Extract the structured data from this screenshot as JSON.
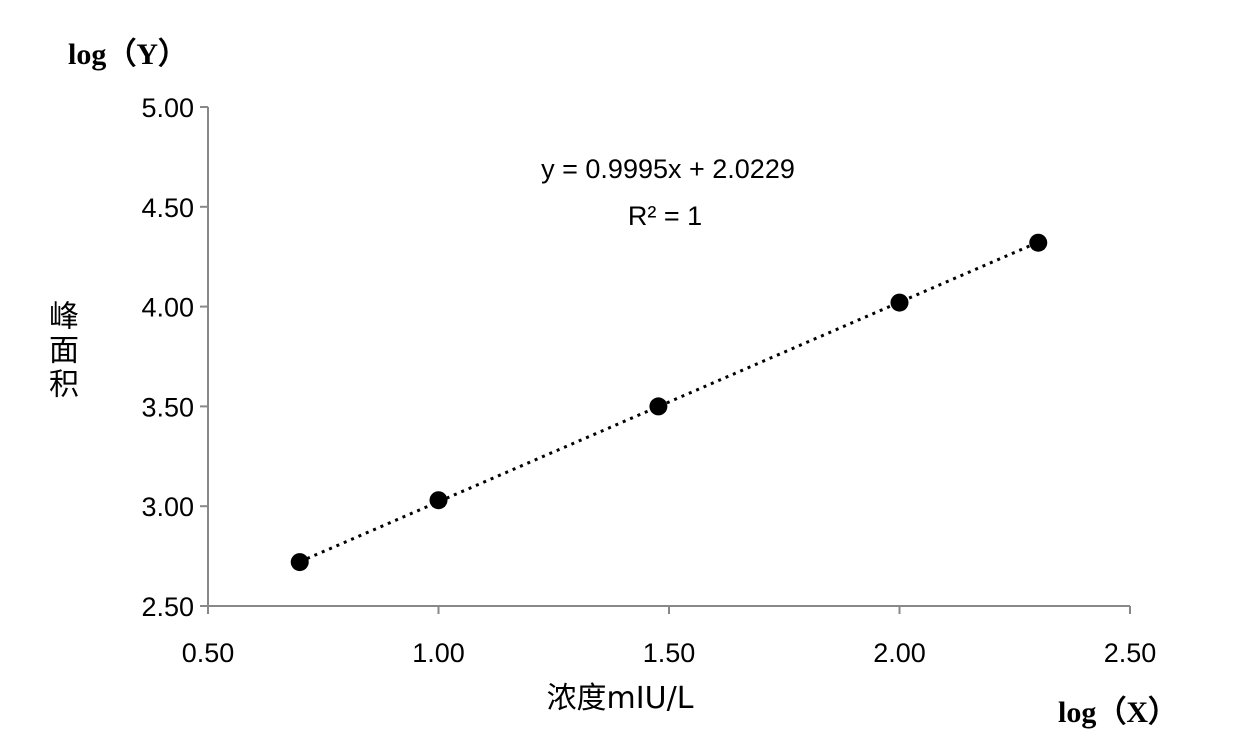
{
  "chart_data": {
    "type": "scatter",
    "title": "",
    "xlabel": "浓度mIU/L",
    "ylabel": "峰面积",
    "x_axis_note": "log（X）",
    "y_axis_note": "log（Y）",
    "xlim": [
      0.5,
      2.5
    ],
    "ylim": [
      2.5,
      5.0
    ],
    "xticks": [
      "0.50",
      "1.00",
      "1.50",
      "2.00",
      "2.50"
    ],
    "yticks": [
      "2.50",
      "3.00",
      "3.50",
      "4.00",
      "4.50",
      "5.00"
    ],
    "grid": false,
    "series": [
      {
        "name": "data",
        "x": [
          0.699,
          1.0,
          1.477,
          2.0,
          2.301
        ],
        "y": [
          2.72,
          3.03,
          3.5,
          4.02,
          4.32
        ],
        "color": "#000000"
      }
    ],
    "trendline": {
      "slope": 0.9995,
      "intercept": 2.0229,
      "style": "dotted"
    },
    "annotations": {
      "equation": "y = 0.9995x + 2.0229",
      "r2": "R² = 1"
    }
  }
}
